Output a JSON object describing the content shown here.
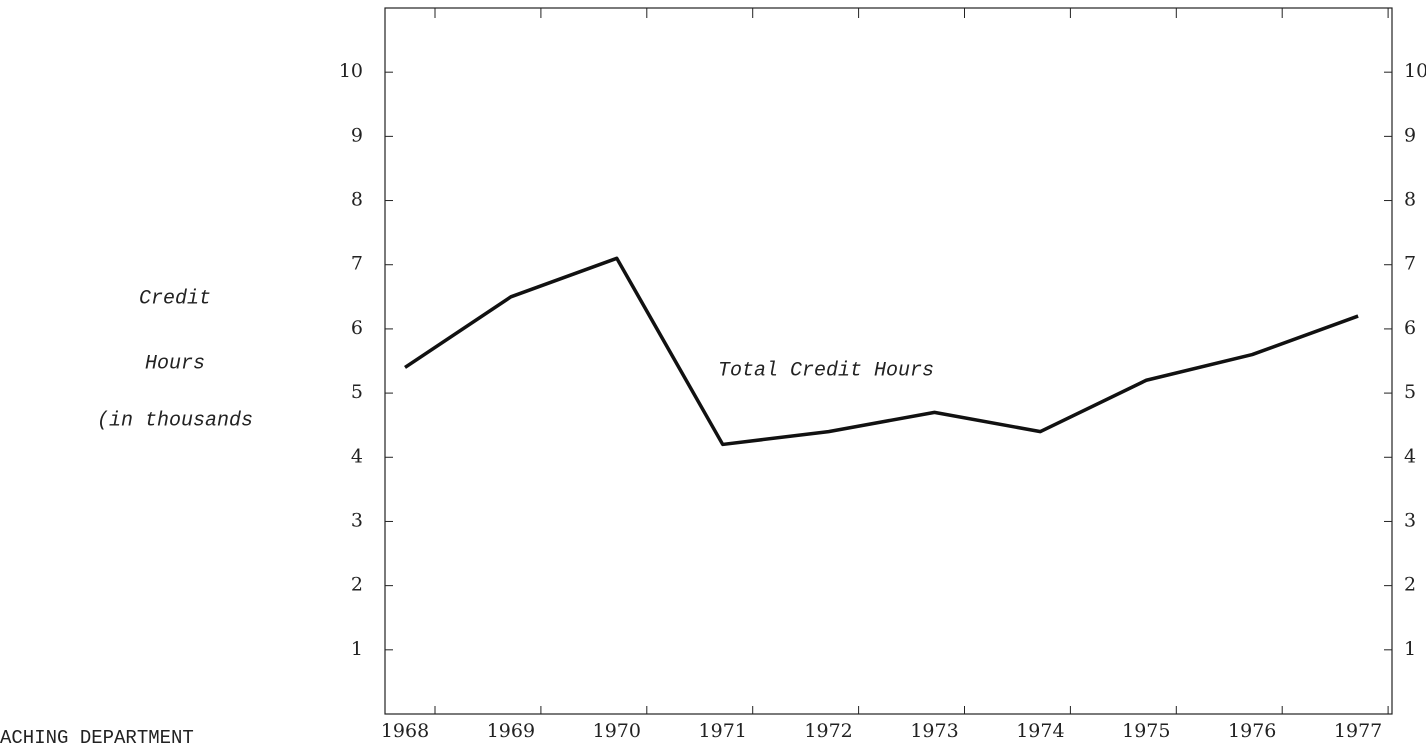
{
  "chart_data": {
    "type": "line",
    "ylabel": [
      "Credit",
      "Hours",
      "(in thousands"
    ],
    "annotation": "Total Credit Hours",
    "footer": "ACHING DEPARTMENT",
    "categories": [
      "1968",
      "1969",
      "1970",
      "1971",
      "1972",
      "1973",
      "1974",
      "1975",
      "1976",
      "1977"
    ],
    "values": [
      5.4,
      6.5,
      7.1,
      4.2,
      4.4,
      4.7,
      4.4,
      5.2,
      5.6,
      6.2
    ],
    "color": "#111111",
    "ylim": [
      0,
      11
    ],
    "yticks": [
      1,
      2,
      3,
      4,
      5,
      6,
      7,
      8,
      9,
      10
    ],
    "grid": false
  }
}
